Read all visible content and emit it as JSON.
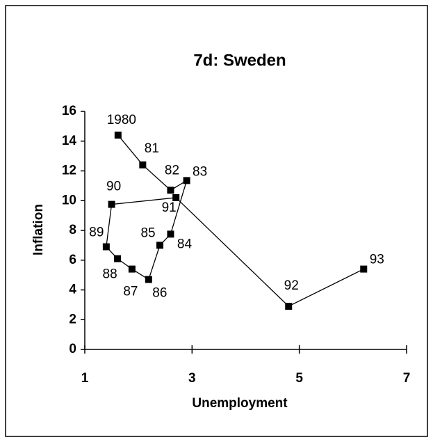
{
  "chart_data": {
    "type": "connected-scatter",
    "title": "7d: Sweden",
    "x_label": "Unemployment",
    "y_label": "Inflation",
    "x": [
      1.62,
      2.08,
      2.6,
      2.9,
      2.6,
      2.4,
      2.19,
      1.88,
      1.61,
      1.4,
      1.5,
      2.7,
      4.8,
      6.2
    ],
    "values": [
      14.4,
      12.4,
      10.7,
      11.35,
      7.75,
      7.0,
      4.7,
      5.4,
      6.1,
      6.9,
      9.75,
      10.2,
      2.9,
      5.4
    ],
    "point_labels": [
      "1980",
      "81",
      "82",
      "83",
      "84",
      "85",
      "86",
      "87",
      "88",
      "89",
      "90",
      "91",
      "92",
      "93"
    ],
    "color": "#000000",
    "xlim": [
      1,
      7
    ],
    "xticks": [
      1,
      3,
      5,
      7
    ],
    "ylim": [
      0,
      16
    ],
    "yticks": [
      0,
      2,
      4,
      6,
      8,
      10,
      12,
      14,
      16
    ]
  }
}
